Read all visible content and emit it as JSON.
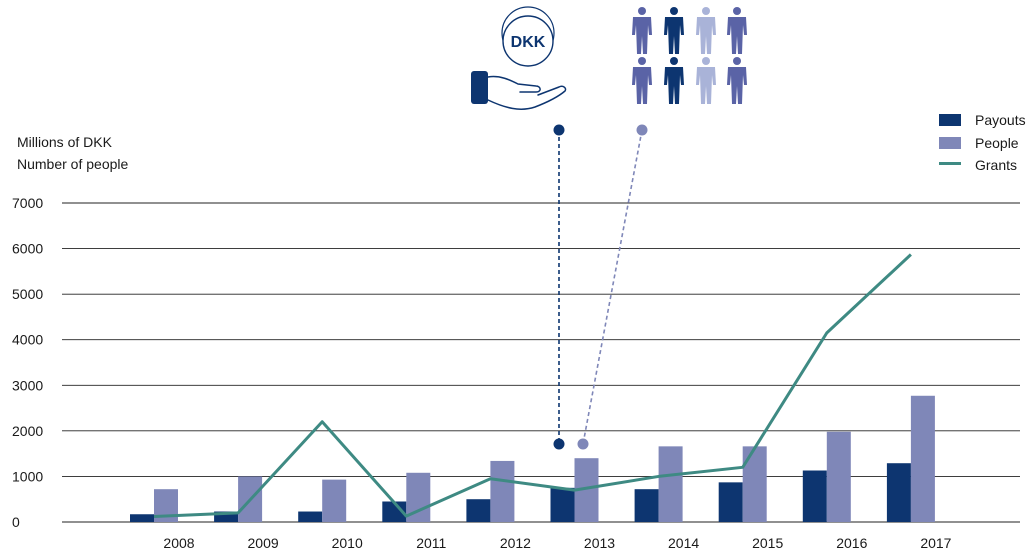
{
  "chart_data": {
    "type": "bar",
    "ylabel_lines": [
      "Millions of DKK",
      "Number of people"
    ],
    "ylim": [
      0,
      7000
    ],
    "yticks": [
      0,
      1000,
      2000,
      3000,
      4000,
      5000,
      6000,
      7000
    ],
    "categories": [
      "2008",
      "2009",
      "2010",
      "2011",
      "2012",
      "2013",
      "2014",
      "2015",
      "2016",
      "2017"
    ],
    "series": [
      {
        "name": "Payouts",
        "kind": "bar",
        "color": "#0d3570",
        "values": [
          170,
          230,
          230,
          450,
          500,
          750,
          720,
          870,
          1130,
          1290
        ]
      },
      {
        "name": "People",
        "kind": "bar",
        "color": "#7f87b8",
        "values": [
          720,
          1000,
          930,
          1080,
          1340,
          1400,
          1660,
          1660,
          1980,
          2770
        ]
      },
      {
        "name": "Grants",
        "kind": "line",
        "color": "#3e8a83",
        "values": [
          120,
          200,
          2200,
          130,
          950,
          700,
          1000,
          1200,
          4150,
          5870
        ]
      }
    ],
    "legend": [
      "Payouts",
      "People",
      "Grants"
    ],
    "legend_position": "top-right",
    "grid": true,
    "annotations": {
      "coin_label": "DKK",
      "payouts_icon": "hand-with-coin-icon",
      "people_icon": "people-group-icon"
    }
  }
}
